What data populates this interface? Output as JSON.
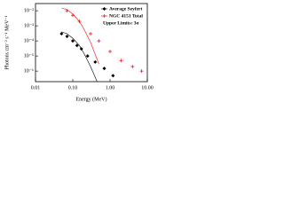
{
  "chart_data": {
    "type": "scatter",
    "xlabel": "Energy (MeV)",
    "ylabel": "Photons cm⁻² s⁻¹ MeV⁻¹",
    "log_x": true,
    "log_y": true,
    "legend": "upper right",
    "annotation": "Upper Limits: 3σ",
    "xlim": [
      0.01,
      10
    ],
    "ylim": [
      2e-07,
      0.03
    ],
    "xticks": [
      {
        "value": 0.01,
        "label": "0.01"
      },
      {
        "value": 0.1,
        "label": "0.10"
      },
      {
        "value": 1,
        "label": "1.00"
      },
      {
        "value": 10,
        "label": "10.00"
      }
    ],
    "yticks": [
      {
        "value": 1e-06,
        "label": "10⁻⁶"
      },
      {
        "value": 1e-05,
        "label": "10⁻⁵"
      },
      {
        "value": 0.0001,
        "label": "10⁻⁴"
      },
      {
        "value": 0.001,
        "label": "10⁻³"
      },
      {
        "value": 0.01,
        "label": "10⁻²"
      }
    ],
    "series": [
      {
        "name": "Average Seyfert",
        "color": "#000000",
        "marker": "diamond",
        "x": [
          0.05,
          0.07,
          0.1,
          0.13,
          0.17,
          0.25,
          0.4,
          0.7,
          1.2
        ],
        "values": [
          0.0003,
          0.0002,
          0.0001,
          5e-05,
          3e-05,
          1e-05,
          4e-06,
          1.5e-06,
          5e-07
        ]
      },
      {
        "name": "NGC 4151 Total",
        "color": "#ff0000",
        "marker": "cross",
        "x": [
          0.07,
          0.1,
          0.15,
          0.3,
          0.5,
          1,
          2,
          4,
          7
        ],
        "values": [
          0.01,
          0.005,
          0.002,
          0.0003,
          0.0001,
          2e-05,
          5e-06,
          2e-06,
          1e-06
        ]
      },
      {
        "color": "#ff0000",
        "style": "line",
        "x": [
          0.05,
          0.07,
          0.1,
          0.15,
          0.2,
          0.3,
          0.5
        ],
        "values": [
          0.015,
          0.012,
          0.006,
          0.002,
          0.0006,
          8e-05,
          3e-06
        ]
      },
      {
        "color": "#000000",
        "style": "line",
        "x": [
          0.05,
          0.07,
          0.1,
          0.15,
          0.2,
          0.3,
          0.45
        ],
        "values": [
          0.0004,
          0.0003,
          0.00015,
          5e-05,
          1.5e-05,
          2e-06,
          2e-07
        ]
      }
    ]
  }
}
